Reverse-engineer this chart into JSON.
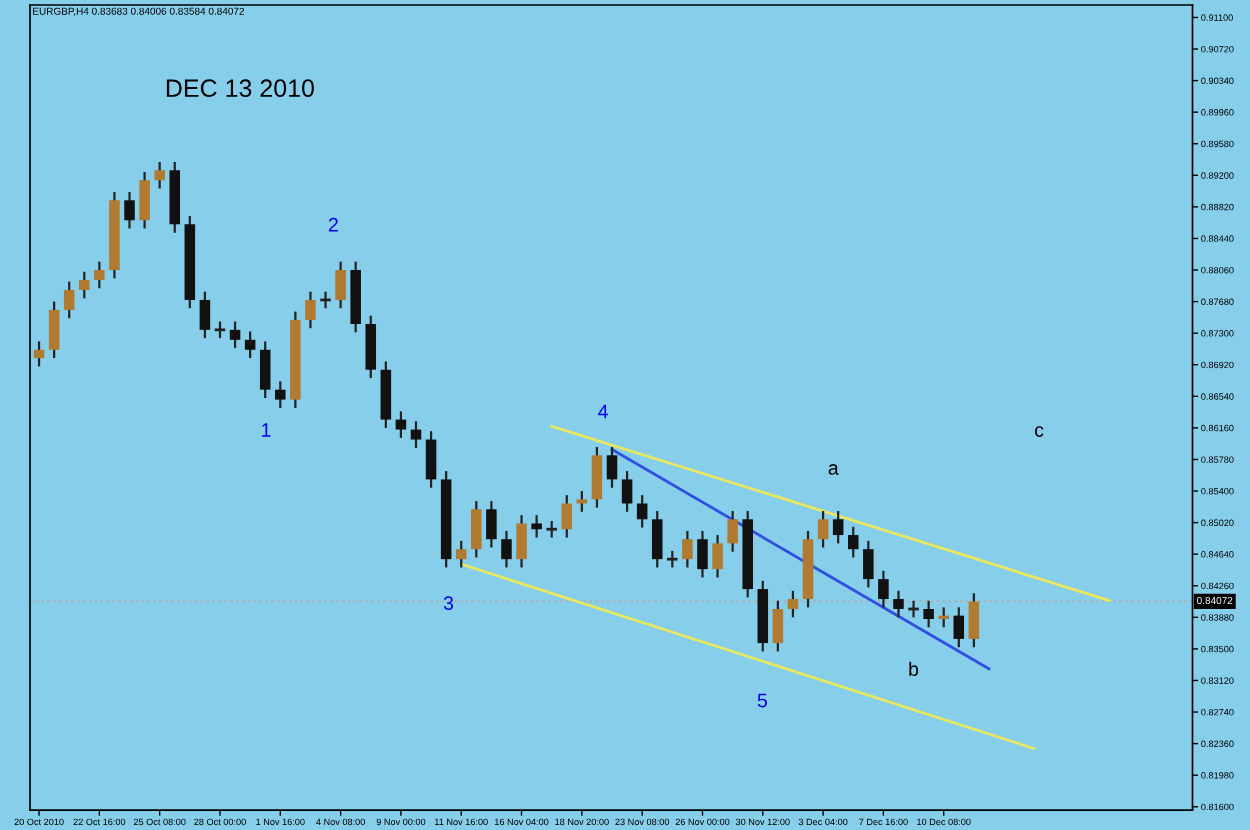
{
  "chart_data": {
    "type": "candlestick",
    "title": "EURGBP,H4 0.83683 0.84006 0.83584 0.84072",
    "categories": [
      "20 Oct 2010",
      null,
      null,
      null,
      "22 Oct 16:00",
      null,
      null,
      null,
      "25 Oct 08:00",
      null,
      null,
      null,
      "28 Oct 00:00",
      null,
      null,
      null,
      "1 Nov 16:00",
      null,
      null,
      null,
      "4 Nov 08:00",
      null,
      null,
      null,
      "9 Nov 00:00",
      null,
      null,
      null,
      "11 Nov 16:00",
      null,
      null,
      null,
      "16 Nov 04:00",
      null,
      null,
      null,
      "18 Nov 20:00",
      null,
      null,
      null,
      "23 Nov 08:00",
      null,
      null,
      null,
      "26 Nov 00:00",
      null,
      null,
      null,
      "30 Nov 12:00",
      null,
      null,
      null,
      "3 Dec 04:00",
      null,
      null,
      null,
      "7 Dec 16:00",
      null,
      null,
      null,
      "10 Dec 08:00",
      null,
      null,
      null,
      null,
      null,
      null,
      null,
      null,
      null,
      null,
      null,
      null,
      null,
      null,
      null,
      null
    ],
    "ohlc": [
      [
        0.87,
        0.872,
        0.869,
        0.871
      ],
      [
        0.871,
        0.8768,
        0.87,
        0.8758
      ],
      [
        0.8758,
        0.8792,
        0.8748,
        0.8782
      ],
      [
        0.8782,
        0.8804,
        0.8772,
        0.8794
      ],
      [
        0.8794,
        0.8816,
        0.8784,
        0.8806
      ],
      [
        0.8806,
        0.89,
        0.8796,
        0.889
      ],
      [
        0.889,
        0.89,
        0.8856,
        0.8866
      ],
      [
        0.8866,
        0.8924,
        0.8856,
        0.8914
      ],
      [
        0.8914,
        0.8936,
        0.8904,
        0.8926
      ],
      [
        0.8926,
        0.8936,
        0.8851,
        0.8861
      ],
      [
        0.8861,
        0.8871,
        0.876,
        0.877
      ],
      [
        0.877,
        0.878,
        0.8724,
        0.8734
      ],
      [
        0.8734,
        0.8744,
        0.8724,
        0.8734
      ],
      [
        0.8734,
        0.8744,
        0.8712,
        0.8722
      ],
      [
        0.8722,
        0.8732,
        0.87,
        0.871
      ],
      [
        0.871,
        0.872,
        0.8652,
        0.8662
      ],
      [
        0.8662,
        0.8672,
        0.864,
        0.865
      ],
      [
        0.865,
        0.8756,
        0.864,
        0.8746
      ],
      [
        0.8746,
        0.878,
        0.8736,
        0.877
      ],
      [
        0.877,
        0.878,
        0.876,
        0.877
      ],
      [
        0.877,
        0.8816,
        0.876,
        0.8806
      ],
      [
        0.8806,
        0.8816,
        0.8731,
        0.8741
      ],
      [
        0.8741,
        0.8751,
        0.8676,
        0.8686
      ],
      [
        0.8686,
        0.8696,
        0.8616,
        0.8626
      ],
      [
        0.8626,
        0.8636,
        0.8604,
        0.8614
      ],
      [
        0.8614,
        0.8624,
        0.8592,
        0.8602
      ],
      [
        0.8602,
        0.8612,
        0.8544,
        0.8554
      ],
      [
        0.8554,
        0.8564,
        0.8448,
        0.8458
      ],
      [
        0.8458,
        0.848,
        0.8448,
        0.847
      ],
      [
        0.847,
        0.8528,
        0.846,
        0.8518
      ],
      [
        0.8518,
        0.8528,
        0.8472,
        0.8482
      ],
      [
        0.8482,
        0.8492,
        0.8448,
        0.8458
      ],
      [
        0.8458,
        0.8511,
        0.8448,
        0.8501
      ],
      [
        0.8501,
        0.8511,
        0.8484,
        0.8494
      ],
      [
        0.8494,
        0.8504,
        0.8484,
        0.8494
      ],
      [
        0.8494,
        0.8535,
        0.8484,
        0.8525
      ],
      [
        0.8525,
        0.854,
        0.8515,
        0.853
      ],
      [
        0.853,
        0.8593,
        0.852,
        0.8583
      ],
      [
        0.8583,
        0.8593,
        0.8544,
        0.8554
      ],
      [
        0.8554,
        0.8564,
        0.8515,
        0.8525
      ],
      [
        0.8525,
        0.8535,
        0.8496,
        0.8506
      ],
      [
        0.8506,
        0.8516,
        0.8448,
        0.8458
      ],
      [
        0.8458,
        0.8468,
        0.8448,
        0.8458
      ],
      [
        0.8458,
        0.8492,
        0.8448,
        0.8482
      ],
      [
        0.8482,
        0.8492,
        0.8436,
        0.8446
      ],
      [
        0.8446,
        0.8487,
        0.8436,
        0.8477
      ],
      [
        0.8477,
        0.8516,
        0.8467,
        0.8506
      ],
      [
        0.8506,
        0.8516,
        0.8412,
        0.8422
      ],
      [
        0.8422,
        0.8432,
        0.8347,
        0.8357
      ],
      [
        0.8357,
        0.8408,
        0.8347,
        0.8398
      ],
      [
        0.8398,
        0.842,
        0.8388,
        0.841
      ],
      [
        0.841,
        0.8492,
        0.84,
        0.8482
      ],
      [
        0.8482,
        0.8516,
        0.8472,
        0.8506
      ],
      [
        0.8506,
        0.8516,
        0.8477,
        0.8487
      ],
      [
        0.8487,
        0.8497,
        0.846,
        0.847
      ],
      [
        0.847,
        0.848,
        0.8424,
        0.8434
      ],
      [
        0.8434,
        0.8444,
        0.84,
        0.841
      ],
      [
        0.841,
        0.842,
        0.8388,
        0.8398
      ],
      [
        0.8398,
        0.8408,
        0.8388,
        0.8398
      ],
      [
        0.8398,
        0.8408,
        0.8376,
        0.8386
      ],
      [
        0.8386,
        0.84,
        0.8376,
        0.839
      ],
      [
        0.839,
        0.84,
        0.8352,
        0.8362
      ],
      [
        0.8362,
        0.8417,
        0.8352,
        0.8407
      ],
      null,
      null,
      null,
      null,
      null,
      null,
      null,
      null,
      null,
      null,
      null,
      null,
      null,
      null
    ],
    "series": [
      {
        "type": "line",
        "color": "#e8e860",
        "values": [
          null,
          null,
          null,
          null,
          null,
          null,
          null,
          null,
          null,
          null,
          null,
          null,
          null,
          null,
          null,
          null,
          null,
          null,
          null,
          null,
          null,
          null,
          null,
          null,
          null,
          null,
          null,
          null,
          null,
          null,
          null,
          null,
          null,
          null,
          0.8618,
          null,
          null,
          null,
          null,
          null,
          null,
          null,
          null,
          null,
          null,
          null,
          null,
          null,
          null,
          null,
          null,
          null,
          null,
          null,
          null,
          null,
          null,
          null,
          null,
          null,
          null,
          null,
          null,
          null,
          null,
          null,
          null,
          null,
          null,
          null,
          null,
          0.8408,
          null,
          null,
          null,
          null,
          null
        ]
      },
      {
        "type": "line",
        "color": "#e8e860",
        "values": [
          null,
          null,
          null,
          null,
          null,
          null,
          null,
          null,
          null,
          null,
          null,
          null,
          null,
          null,
          null,
          null,
          null,
          null,
          null,
          null,
          null,
          null,
          null,
          null,
          null,
          null,
          null,
          null,
          0.8452,
          null,
          null,
          null,
          null,
          null,
          null,
          null,
          null,
          null,
          null,
          null,
          null,
          null,
          null,
          null,
          null,
          null,
          null,
          null,
          null,
          null,
          null,
          null,
          null,
          null,
          null,
          null,
          null,
          null,
          null,
          null,
          null,
          null,
          null,
          null,
          null,
          null,
          0.823,
          null,
          null,
          null,
          null,
          null,
          null,
          null,
          null,
          null,
          null
        ]
      },
      {
        "type": "line",
        "color": "#3050e0",
        "values": [
          null,
          null,
          null,
          null,
          null,
          null,
          null,
          null,
          null,
          null,
          null,
          null,
          null,
          null,
          null,
          null,
          null,
          null,
          null,
          null,
          null,
          null,
          null,
          null,
          null,
          null,
          null,
          null,
          null,
          null,
          null,
          null,
          null,
          null,
          null,
          null,
          null,
          null,
          0.859,
          null,
          null,
          null,
          null,
          null,
          null,
          null,
          null,
          null,
          null,
          null,
          null,
          null,
          null,
          null,
          null,
          null,
          null,
          null,
          null,
          null,
          null,
          null,
          null,
          0.8326,
          null,
          null,
          null,
          null,
          null,
          null,
          null,
          null,
          null,
          null,
          null,
          null,
          null
        ]
      }
    ],
    "annotations": [
      "DEC 13 2010",
      "1",
      "2",
      "3",
      "4",
      "5",
      "a",
      "b",
      "c"
    ],
    "ref_lines": [
      {
        "axis": "y",
        "value": 0.84072,
        "label": "0.84072",
        "color": "#b0b0b0",
        "line_style": "dotted"
      }
    ],
    "ylim": [
      0.8156,
      0.9125
    ],
    "yticks": [
      {
        "value": 0.911,
        "label": "0.91100"
      },
      {
        "value": 0.9072,
        "label": "0.90720"
      },
      {
        "value": 0.9034,
        "label": "0.90340"
      },
      {
        "value": 0.8996,
        "label": "0.89960"
      },
      {
        "value": 0.8958,
        "label": "0.89580"
      },
      {
        "value": 0.892,
        "label": "0.89200"
      },
      {
        "value": 0.8882,
        "label": "0.88820"
      },
      {
        "value": 0.8844,
        "label": "0.88440"
      },
      {
        "value": 0.8806,
        "label": "0.88060"
      },
      {
        "value": 0.8768,
        "label": "0.87680"
      },
      {
        "value": 0.873,
        "label": "0.87300"
      },
      {
        "value": 0.8692,
        "label": "0.86920"
      },
      {
        "value": 0.8654,
        "label": "0.86540"
      },
      {
        "value": 0.8616,
        "label": "0.86160"
      },
      {
        "value": 0.8578,
        "label": "0.85780"
      },
      {
        "value": 0.854,
        "label": "0.85400"
      },
      {
        "value": 0.8502,
        "label": "0.85020"
      },
      {
        "value": 0.8464,
        "label": "0.84640"
      },
      {
        "value": 0.8426,
        "label": "0.84260"
      },
      {
        "value": 0.8388,
        "label": "0.83880"
      },
      {
        "value": 0.835,
        "label": "0.83500"
      },
      {
        "value": 0.8312,
        "label": "0.83120"
      },
      {
        "value": 0.8274,
        "label": "0.82740"
      },
      {
        "value": 0.8236,
        "label": "0.82360"
      },
      {
        "value": 0.8198,
        "label": "0.81980"
      },
      {
        "value": 0.816,
        "label": "0.81600"
      }
    ],
    "grid": false,
    "legend": false
  }
}
